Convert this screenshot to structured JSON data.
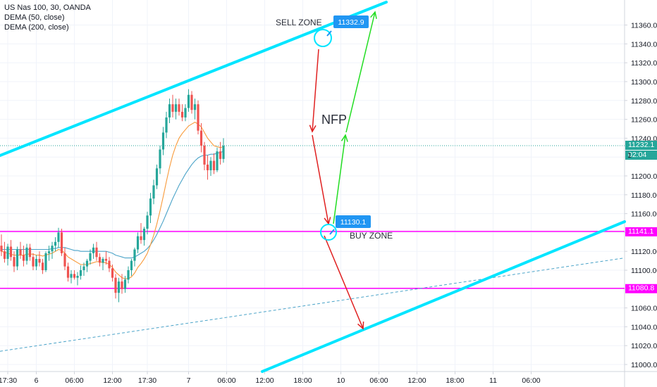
{
  "legend": {
    "symbol": "US Nas 100, 30, OANDA",
    "ind1": "DEMA (50, close)",
    "ind2": "DEMA (200, close)"
  },
  "colors": {
    "up": "#26a69a",
    "down": "#ef5350",
    "channel": "#00e5ff",
    "box": "#ff00ff",
    "dema50": "#f89a3a",
    "dema200": "#4aa3c8",
    "arrow_down": "#e02020",
    "arrow_up": "#22dd22",
    "tag": "#2196f3",
    "price_line": "#26a69a"
  },
  "annotations": {
    "sell_zone": "SELL ZONE",
    "buy_zone": "BUY ZONE",
    "nfp": "NFP",
    "sell_price": "11332.9",
    "buy_price": "11130.1"
  },
  "price_tags": {
    "current": "11232.1",
    "countdown": "02:04",
    "box_top": "11141.1",
    "box_bottom": "11080.8",
    "partial": "1"
  },
  "chart_data": {
    "type": "candlestick",
    "title": "US Nas 100, 30, OANDA",
    "ylim": [
      10995,
      11370
    ],
    "y_ticks": [
      11000,
      11020,
      11040,
      11060,
      11080,
      11100,
      11120,
      11140,
      11160,
      11180,
      11200,
      11220,
      11240,
      11260,
      11280,
      11300,
      11320,
      11340,
      11360
    ],
    "x_ticks": [
      {
        "label": "17:30",
        "i": 2
      },
      {
        "label": "6",
        "i": 11
      },
      {
        "label": "06:00",
        "i": 23
      },
      {
        "label": "12:00",
        "i": 35
      },
      {
        "label": "17:30",
        "i": 46
      },
      {
        "label": "7",
        "i": 59
      },
      {
        "label": "06:00",
        "i": 71
      },
      {
        "label": "12:00",
        "i": 83
      },
      {
        "label": "18:00",
        "i": 95
      },
      {
        "label": "10",
        "i": 107
      },
      {
        "label": "06:00",
        "i": 119
      },
      {
        "label": "12:00",
        "i": 131
      },
      {
        "label": "18:00",
        "i": 143
      },
      {
        "label": "11",
        "i": 155
      },
      {
        "label": "06:00",
        "i": 167
      }
    ],
    "candles": [
      [
        11126,
        11138,
        11115,
        11120
      ],
      [
        11120,
        11130,
        11108,
        11112
      ],
      [
        11112,
        11128,
        11105,
        11125
      ],
      [
        11125,
        11132,
        11110,
        11114
      ],
      [
        11114,
        11120,
        11098,
        11104
      ],
      [
        11104,
        11125,
        11100,
        11122
      ],
      [
        11122,
        11130,
        11112,
        11116
      ],
      [
        11116,
        11126,
        11104,
        11110
      ],
      [
        11110,
        11128,
        11106,
        11124
      ],
      [
        11124,
        11128,
        11110,
        11114
      ],
      [
        11114,
        11118,
        11100,
        11104
      ],
      [
        11104,
        11116,
        11100,
        11112
      ],
      [
        11112,
        11120,
        11104,
        11108
      ],
      [
        11108,
        11112,
        11096,
        11100
      ],
      [
        11100,
        11120,
        11098,
        11118
      ],
      [
        11118,
        11126,
        11110,
        11120
      ],
      [
        11120,
        11130,
        11112,
        11126
      ],
      [
        11126,
        11135,
        11120,
        11130
      ],
      [
        11130,
        11145,
        11124,
        11140
      ],
      [
        11140,
        11144,
        11115,
        11118
      ],
      [
        11118,
        11124,
        11100,
        11104
      ],
      [
        11104,
        11108,
        11088,
        11092
      ],
      [
        11092,
        11100,
        11086,
        11096
      ],
      [
        11096,
        11100,
        11090,
        11092
      ],
      [
        11092,
        11098,
        11084,
        11094
      ],
      [
        11094,
        11105,
        11090,
        11100
      ],
      [
        11100,
        11108,
        11094,
        11104
      ],
      [
        11104,
        11112,
        11098,
        11110
      ],
      [
        11110,
        11122,
        11106,
        11118
      ],
      [
        11118,
        11128,
        11112,
        11124
      ],
      [
        11124,
        11130,
        11110,
        11114
      ],
      [
        11114,
        11118,
        11104,
        11108
      ],
      [
        11108,
        11114,
        11100,
        11112
      ],
      [
        11112,
        11120,
        11106,
        11110
      ],
      [
        11110,
        11114,
        11098,
        11102
      ],
      [
        11102,
        11106,
        11088,
        11092
      ],
      [
        11092,
        11096,
        11070,
        11076
      ],
      [
        11076,
        11092,
        11066,
        11088
      ],
      [
        11088,
        11096,
        11075,
        11080
      ],
      [
        11080,
        11094,
        11076,
        11090
      ],
      [
        11090,
        11104,
        11086,
        11100
      ],
      [
        11100,
        11112,
        11094,
        11110
      ],
      [
        11110,
        11124,
        11104,
        11122
      ],
      [
        11122,
        11140,
        11118,
        11136
      ],
      [
        11136,
        11150,
        11128,
        11132
      ],
      [
        11132,
        11146,
        11126,
        11144
      ],
      [
        11144,
        11162,
        11138,
        11158
      ],
      [
        11158,
        11182,
        11150,
        11176
      ],
      [
        11176,
        11196,
        11170,
        11190
      ],
      [
        11190,
        11212,
        11186,
        11208
      ],
      [
        11208,
        11232,
        11202,
        11228
      ],
      [
        11228,
        11252,
        11222,
        11246
      ],
      [
        11246,
        11268,
        11240,
        11262
      ],
      [
        11262,
        11282,
        11256,
        11276
      ],
      [
        11276,
        11286,
        11262,
        11268
      ],
      [
        11268,
        11282,
        11260,
        11276
      ],
      [
        11276,
        11282,
        11264,
        11268
      ],
      [
        11268,
        11276,
        11258,
        11262
      ],
      [
        11262,
        11276,
        11258,
        11272
      ],
      [
        11272,
        11292,
        11268,
        11286
      ],
      [
        11286,
        11290,
        11266,
        11270
      ],
      [
        11270,
        11282,
        11260,
        11276
      ],
      [
        11276,
        11280,
        11244,
        11248
      ],
      [
        11248,
        11256,
        11225,
        11232
      ],
      [
        11232,
        11236,
        11206,
        11212
      ],
      [
        11212,
        11222,
        11196,
        11206
      ],
      [
        11206,
        11220,
        11200,
        11216
      ],
      [
        11216,
        11224,
        11202,
        11206
      ],
      [
        11206,
        11230,
        11204,
        11226
      ],
      [
        11226,
        11236,
        11212,
        11218
      ],
      [
        11218,
        11240,
        11214,
        11232
      ]
    ],
    "dema50": [
      11120,
      11119,
      11118,
      11117,
      11116,
      11116,
      11116,
      11116,
      11117,
      11117,
      11117,
      11116,
      11116,
      11115,
      11116,
      11117,
      11118,
      11120,
      11122,
      11121,
      11118,
      11114,
      11112,
      11110,
      11108,
      11106,
      11106,
      11106,
      11107,
      11108,
      11109,
      11109,
      11108,
      11108,
      11106,
      11103,
      11098,
      11095,
      11092,
      11091,
      11091,
      11093,
      11097,
      11103,
      11107,
      11112,
      11118,
      11127,
      11137,
      11149,
      11163,
      11178,
      11194,
      11209,
      11222,
      11232,
      11240,
      11245,
      11249,
      11253,
      11255,
      11257,
      11255,
      11252,
      11246,
      11240,
      11236,
      11232,
      11231,
      11230,
      11231
    ],
    "dema200": [
      11122,
      11122,
      11122,
      11122,
      11122,
      11122,
      11122,
      11122,
      11122,
      11122,
      11122,
      11122,
      11122,
      11122,
      11122,
      11122,
      11123,
      11123,
      11124,
      11124,
      11124,
      11123,
      11122,
      11121,
      11121,
      11120,
      11120,
      11120,
      11120,
      11120,
      11120,
      11120,
      11120,
      11120,
      11119,
      11118,
      11116,
      11115,
      11114,
      11113,
      11113,
      11113,
      11114,
      11116,
      11118,
      11120,
      11123,
      11127,
      11132,
      11138,
      11145,
      11152,
      11160,
      11168,
      11176,
      11183,
      11190,
      11196,
      11202,
      11207,
      11212,
      11216,
      11219,
      11221,
      11222,
      11222,
      11223,
      11223,
      11224,
      11225,
      11226
    ]
  }
}
